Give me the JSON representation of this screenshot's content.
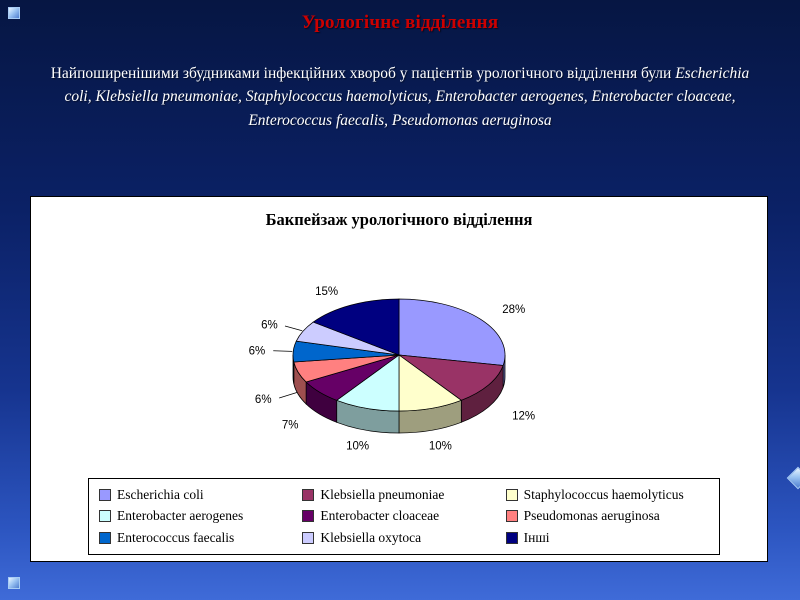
{
  "slide": {
    "title": "Урологічне відділення",
    "title_color": "#cc0000",
    "background_top": "#061643",
    "background_bottom": "#3f6bd8",
    "paragraph_segments": [
      {
        "text": "Найпоширенішими збудниками інфекційних хвороб у пацієнтів урологічного відділення були ",
        "italic": false
      },
      {
        "text": "Escherichia coli, Klebsiella pneumoniae, Staphylococcus haemolyticus, Enterobacter aerogenes, Enterobacter cloaceae, Enterococcus faecalis, Pseudomonas aeruginosa",
        "italic": true
      }
    ]
  },
  "chart_data": {
    "type": "pie",
    "effect": "3d",
    "title": "Бакпейзаж урологічного відділення",
    "legend_position": "bottom",
    "start_angle_deg": -90,
    "direction": "clockwise",
    "labels": [
      "Escherichia coli",
      "Klebsiella pneumoniae",
      "Staphylococcus haemolyticus",
      "Enterobacter aerogenes",
      "Enterobacter cloaceae",
      "Pseudomonas aeruginosa",
      "Enterococcus faecalis",
      "Klebsiella oxytoca",
      "Інші"
    ],
    "values": [
      28,
      12,
      10,
      10,
      7,
      6,
      6,
      6,
      15
    ],
    "value_labels": [
      "28%",
      "12%",
      "10%",
      "10%",
      "7%",
      "6%",
      "6%",
      "6%",
      "15%"
    ],
    "colors": [
      "#9999FF",
      "#993366",
      "#FFFFCC",
      "#CCFFFF",
      "#660066",
      "#FF8080",
      "#0066CC",
      "#CCCCFF",
      "#000080"
    ]
  }
}
